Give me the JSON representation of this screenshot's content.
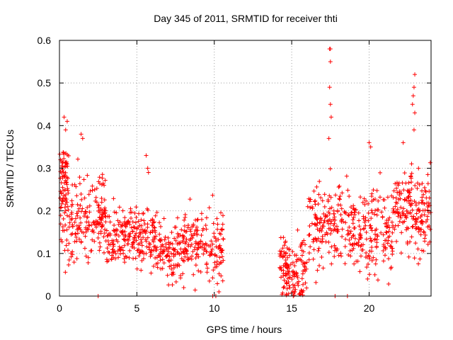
{
  "chart_data": {
    "type": "scatter",
    "title": "Day 345 of 2011, SRMTID for receiver thti",
    "xlabel": "GPS time / hours",
    "ylabel": "SRMTID / TECUs",
    "xlim": [
      0,
      24
    ],
    "ylim": [
      0,
      0.6
    ],
    "xticks": [
      0,
      5,
      10,
      15,
      20
    ],
    "yticks": [
      0,
      0.1,
      0.2,
      0.3,
      0.4,
      0.5,
      0.6
    ],
    "grid": true,
    "marker": "+",
    "color": "#ff0000",
    "gap": [
      10.6,
      14.2
    ],
    "clusters": [
      {
        "x0": 0.0,
        "x1": 0.6,
        "mean": 0.25,
        "spread": 0.1,
        "n": 90
      },
      {
        "x0": 0.6,
        "x1": 3.0,
        "mean": 0.19,
        "spread": 0.07,
        "n": 170
      },
      {
        "x0": 3.0,
        "x1": 6.3,
        "mean": 0.14,
        "spread": 0.05,
        "n": 230
      },
      {
        "x0": 6.3,
        "x1": 8.0,
        "mean": 0.11,
        "spread": 0.05,
        "n": 110
      },
      {
        "x0": 8.0,
        "x1": 10.6,
        "mean": 0.12,
        "spread": 0.06,
        "n": 170
      },
      {
        "x0": 14.2,
        "x1": 16.0,
        "mean": 0.07,
        "spread": 0.05,
        "n": 140
      },
      {
        "x0": 16.0,
        "x1": 19.0,
        "mean": 0.16,
        "spread": 0.07,
        "n": 190
      },
      {
        "x0": 19.0,
        "x1": 21.5,
        "mean": 0.15,
        "spread": 0.07,
        "n": 160
      },
      {
        "x0": 21.5,
        "x1": 24.0,
        "mean": 0.2,
        "spread": 0.07,
        "n": 190
      }
    ],
    "outliers": [
      {
        "x": 0.3,
        "y": 0.42
      },
      {
        "x": 0.5,
        "y": 0.41
      },
      {
        "x": 0.4,
        "y": 0.39
      },
      {
        "x": 1.4,
        "y": 0.38
      },
      {
        "x": 1.5,
        "y": 0.37
      },
      {
        "x": 5.6,
        "y": 0.33
      },
      {
        "x": 5.7,
        "y": 0.3
      },
      {
        "x": 5.75,
        "y": 0.29
      },
      {
        "x": 17.45,
        "y": 0.58
      },
      {
        "x": 17.5,
        "y": 0.58
      },
      {
        "x": 17.5,
        "y": 0.55
      },
      {
        "x": 17.45,
        "y": 0.49
      },
      {
        "x": 17.5,
        "y": 0.45
      },
      {
        "x": 17.55,
        "y": 0.42
      },
      {
        "x": 17.4,
        "y": 0.37
      },
      {
        "x": 22.95,
        "y": 0.52
      },
      {
        "x": 22.9,
        "y": 0.49
      },
      {
        "x": 22.85,
        "y": 0.47
      },
      {
        "x": 22.8,
        "y": 0.45
      },
      {
        "x": 22.95,
        "y": 0.43
      },
      {
        "x": 22.9,
        "y": 0.39
      },
      {
        "x": 22.2,
        "y": 0.36
      },
      {
        "x": 20.0,
        "y": 0.36
      },
      {
        "x": 20.1,
        "y": 0.35
      },
      {
        "x": 2.5,
        "y": 0.0
      },
      {
        "x": 17.8,
        "y": 0.0
      },
      {
        "x": 18.6,
        "y": 0.0
      },
      {
        "x": 9.9,
        "y": 0.0
      },
      {
        "x": 10.1,
        "y": 0.0
      },
      {
        "x": 10.3,
        "y": 0.01
      },
      {
        "x": 15.1,
        "y": 0.0
      },
      {
        "x": 15.2,
        "y": 0.01
      }
    ]
  }
}
